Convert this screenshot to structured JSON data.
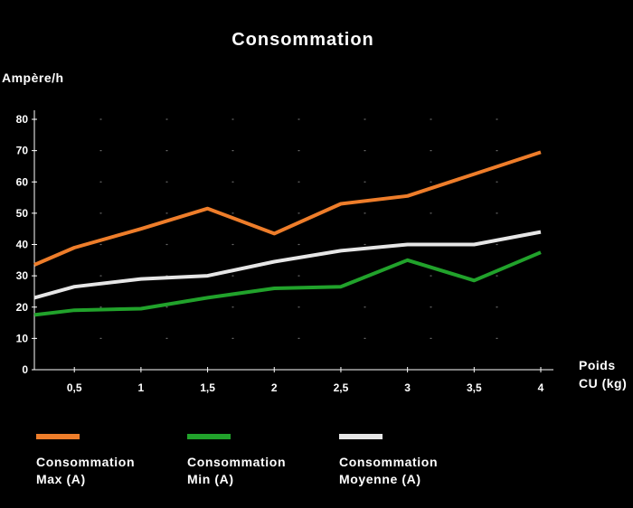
{
  "chart_data": {
    "type": "line",
    "title": "Consommation",
    "ylabel": "Ampère/h",
    "xlabel_lines": [
      "Poids",
      "CU (kg)"
    ],
    "x_ticks": [
      "0,5",
      "1",
      "1,5",
      "2",
      "2,5",
      "3",
      "3,5",
      "4"
    ],
    "y_ticks": [
      "0",
      "10",
      "20",
      "30",
      "40",
      "50",
      "60",
      "70",
      "80"
    ],
    "xlim": [
      0.2,
      4
    ],
    "ylim": [
      0,
      80
    ],
    "grid": "dotted",
    "legend_position": "bottom",
    "series": [
      {
        "name_lines": [
          "Consommation",
          "Max (A)"
        ],
        "color": "#ee7d2a",
        "x": [
          0.2,
          0.5,
          1,
          1.5,
          2,
          2.5,
          3,
          3.5,
          4
        ],
        "values": [
          33.5,
          39,
          45,
          51.5,
          43.5,
          53,
          55.5,
          62.5,
          69.5
        ]
      },
      {
        "name_lines": [
          "Consommation",
          "Min (A)"
        ],
        "color": "#21a22b",
        "x": [
          0.2,
          0.5,
          1,
          1.5,
          2,
          2.5,
          3,
          3.5,
          4
        ],
        "values": [
          17.5,
          19,
          19.5,
          23,
          26,
          26.5,
          35,
          28.5,
          37.5
        ]
      },
      {
        "name_lines": [
          "Consommation",
          "Moyenne (A)"
        ],
        "color": "#e6e6e6",
        "x": [
          0.2,
          0.5,
          1,
          1.5,
          2,
          2.5,
          3,
          3.5,
          4
        ],
        "values": [
          23,
          26.5,
          29,
          30,
          34.5,
          38,
          40,
          40,
          44
        ]
      }
    ]
  }
}
